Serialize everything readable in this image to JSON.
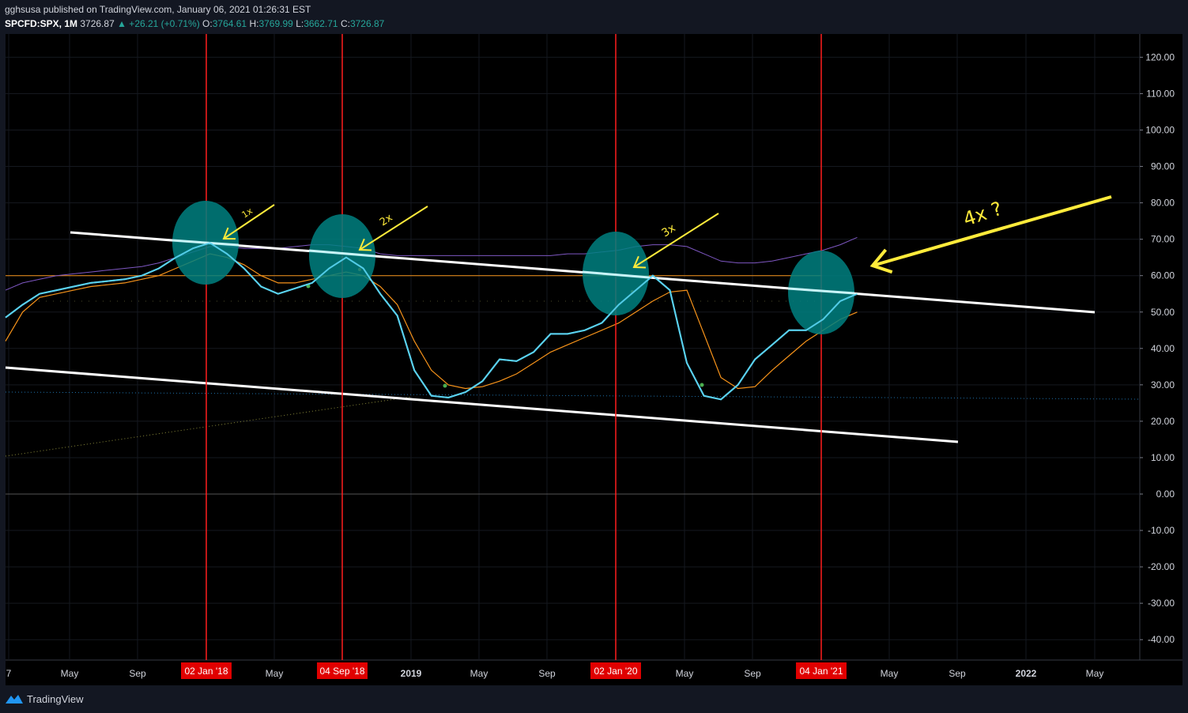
{
  "header": {
    "line1": "gghsusa published on TradingView.com, January 06, 2021 01:26:31 EST",
    "symbol": "SPCFD:SPX, 1M",
    "price": "3726.87",
    "change": "▲ +26.21 (+0.71%)",
    "o_label": "O:",
    "o_value": "3764.61",
    "h_label": "H:",
    "h_value": "3769.99",
    "l_label": "L:",
    "l_value": "3662.71",
    "c_label": "C:",
    "c_value": "3726.87"
  },
  "footer": {
    "brand": "TradingView"
  },
  "colors": {
    "background": "#000000",
    "page": "#131722",
    "oscillator": "#5ad1f0",
    "signal": "#f7931a",
    "purple": "#7e57c2",
    "level_line": "#f7931a",
    "vertical": "#ff1e1e",
    "ellipse": "#008080",
    "annotation": "#ffeb3b",
    "trendline": "#ffffff"
  },
  "chart_data": {
    "type": "line",
    "ylim": [
      -45,
      125
    ],
    "yticks": [
      "120.00",
      "110.00",
      "100.00",
      "90.00",
      "80.00",
      "70.00",
      "60.00",
      "50.00",
      "40.00",
      "30.00",
      "20.00",
      "10.00",
      "0.00",
      "-10.00",
      "-20.00",
      "-30.00",
      "-40.00"
    ],
    "x_tick_labels": [
      "7",
      "May",
      "Sep",
      "May",
      "2019",
      "May",
      "Sep",
      "May",
      "Sep",
      "May",
      "Sep",
      "2022",
      "May"
    ],
    "date_markers": [
      "02 Jan '18",
      "04 Sep '18",
      "02 Jan '20",
      "04 Jan '21"
    ],
    "annotations": [
      "1x",
      "2x",
      "3x",
      "4x ?"
    ],
    "series": [
      {
        "values": [
          48.5,
          52,
          55,
          56,
          57,
          58,
          58.5,
          59,
          60,
          62,
          65,
          67.5,
          69,
          66,
          62,
          57,
          55,
          56.5,
          58,
          62,
          65,
          62,
          55,
          49,
          34,
          27,
          26.5,
          28,
          31,
          37,
          36.5,
          39,
          44,
          44,
          45,
          47,
          52,
          56,
          60,
          56,
          36,
          27,
          26,
          30,
          37,
          41,
          45,
          45,
          48,
          53,
          55
        ]
      },
      {
        "values": [
          42,
          50,
          54,
          55,
          56,
          57,
          57.5,
          58,
          59,
          60,
          62,
          64,
          66,
          65,
          63,
          60,
          58,
          58,
          59,
          60,
          61,
          60,
          57,
          52,
          42,
          34,
          30,
          29,
          29.5,
          31,
          33,
          36,
          39,
          41,
          43,
          45,
          47,
          50,
          53,
          55.5,
          56,
          44,
          32,
          29,
          29.5,
          34,
          38,
          42,
          45,
          48,
          50
        ]
      },
      {
        "values": [
          56,
          58,
          59,
          60,
          60.5,
          61,
          61.5,
          62,
          62.5,
          63.5,
          65,
          66.5,
          68,
          68,
          67.5,
          67.5,
          67.5,
          68,
          68.5,
          68.5,
          68,
          67.5,
          66,
          65.5,
          65.5,
          65.5,
          65.5,
          65.5,
          65.5,
          65.5,
          65.5,
          65.5,
          65.5,
          66,
          66,
          66.5,
          67,
          68,
          68.5,
          68.5,
          68,
          66,
          64,
          63.5,
          63.5,
          64,
          65,
          66,
          67,
          68.5,
          70.5
        ]
      }
    ],
    "level": 60,
    "baseline": 27
  }
}
